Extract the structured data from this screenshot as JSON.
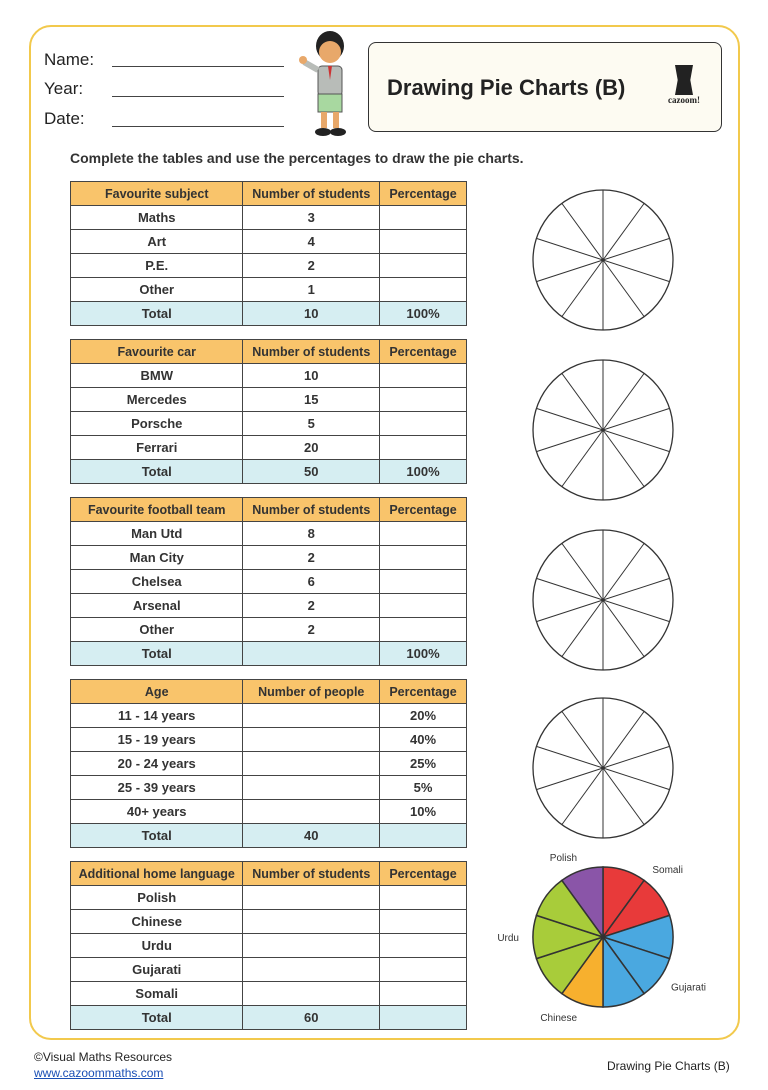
{
  "header": {
    "name_label": "Name:",
    "year_label": "Year:",
    "date_label": "Date:",
    "title": "Drawing Pie Charts (B)",
    "logo_text": "cazoom!"
  },
  "instruction": "Complete the tables and use the percentages to draw the pie charts.",
  "tables": [
    {
      "headers": [
        "Favourite subject",
        "Number of students",
        "Percentage"
      ],
      "rows": [
        [
          "Maths",
          "3",
          ""
        ],
        [
          "Art",
          "4",
          ""
        ],
        [
          "P.E.",
          "2",
          ""
        ],
        [
          "Other",
          "1",
          ""
        ]
      ],
      "total": [
        "Total",
        "10",
        "100%"
      ]
    },
    {
      "headers": [
        "Favourite car",
        "Number of students",
        "Percentage"
      ],
      "rows": [
        [
          "BMW",
          "10",
          ""
        ],
        [
          "Mercedes",
          "15",
          ""
        ],
        [
          "Porsche",
          "5",
          ""
        ],
        [
          "Ferrari",
          "20",
          ""
        ]
      ],
      "total": [
        "Total",
        "50",
        "100%"
      ]
    },
    {
      "headers": [
        "Favourite football team",
        "Number of students",
        "Percentage"
      ],
      "rows": [
        [
          "Man Utd",
          "8",
          ""
        ],
        [
          "Man City",
          "2",
          ""
        ],
        [
          "Chelsea",
          "6",
          ""
        ],
        [
          "Arsenal",
          "2",
          ""
        ],
        [
          "Other",
          "2",
          ""
        ]
      ],
      "total": [
        "Total",
        "",
        "100%"
      ]
    },
    {
      "headers": [
        "Age",
        "Number of people",
        "Percentage"
      ],
      "rows": [
        [
          "11 - 14 years",
          "",
          "20%"
        ],
        [
          "15 - 19 years",
          "",
          "40%"
        ],
        [
          "20 - 24 years",
          "",
          "25%"
        ],
        [
          "25 - 39 years",
          "",
          "5%"
        ],
        [
          "40+ years",
          "",
          "10%"
        ]
      ],
      "total": [
        "Total",
        "40",
        ""
      ]
    },
    {
      "headers": [
        "Additional home language",
        "Number of students",
        "Percentage"
      ],
      "rows": [
        [
          "Polish",
          "",
          ""
        ],
        [
          "Chinese",
          "",
          ""
        ],
        [
          "Urdu",
          "",
          ""
        ],
        [
          "Gujarati",
          "",
          ""
        ],
        [
          "Somali",
          "",
          ""
        ]
      ],
      "total": [
        "Total",
        "60",
        ""
      ]
    }
  ],
  "blank_pie_segments": 10,
  "language_pie": {
    "segments": [
      {
        "label": "Somali",
        "parts": 2,
        "color": "#e83a3a"
      },
      {
        "label": "Gujarati",
        "parts": 3,
        "color": "#4aa8e0"
      },
      {
        "label": "Chinese",
        "parts": 1,
        "color": "#f7b02e"
      },
      {
        "label": "Urdu",
        "parts": 3,
        "color": "#a8cc3a"
      },
      {
        "label": "Polish",
        "parts": 1,
        "color": "#8a55a8"
      }
    ]
  },
  "footer": {
    "copyright": "©Visual Maths Resources",
    "url": "www.cazoommaths.com",
    "right": "Drawing Pie Charts (B)"
  }
}
